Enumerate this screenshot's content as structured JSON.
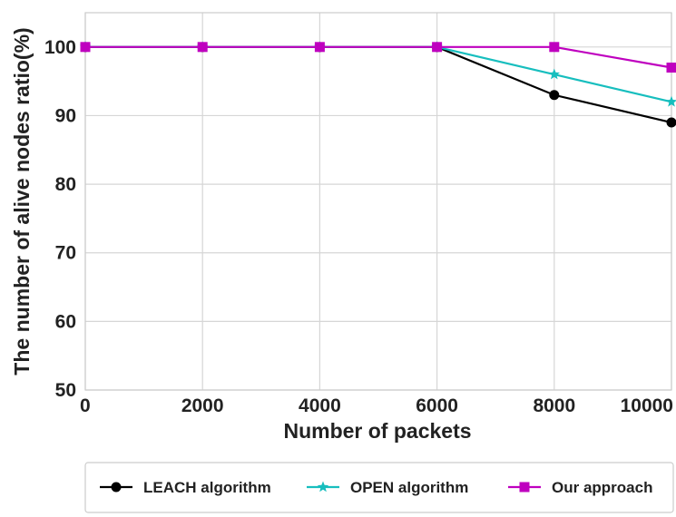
{
  "chart_data": {
    "type": "line",
    "title": "",
    "xlabel": "Number of packets",
    "ylabel": "The number of alive nodes ratio(%)",
    "x": [
      0,
      2000,
      4000,
      6000,
      8000,
      10000
    ],
    "xticks": [
      0,
      2000,
      4000,
      6000,
      8000,
      10000
    ],
    "xtick_labels": [
      "0",
      "2000",
      "4000",
      "6000",
      "8000",
      "10000"
    ],
    "yticks": [
      50,
      60,
      70,
      80,
      90,
      100
    ],
    "ytick_labels": [
      "50",
      "60",
      "70",
      "80",
      "90",
      "100"
    ],
    "xlim": [
      0,
      10000
    ],
    "ylim": [
      50,
      105
    ],
    "grid": true,
    "legend_position": "bottom",
    "series": [
      {
        "name": "LEACH algorithm",
        "marker": "circle",
        "color": "#000000",
        "values": [
          100,
          100,
          100,
          100,
          93,
          89
        ]
      },
      {
        "name": "OPEN algorithm",
        "marker": "star",
        "color": "#17bebe",
        "values": [
          100,
          100,
          100,
          100,
          96,
          92
        ]
      },
      {
        "name": "Our approach",
        "marker": "square",
        "color": "#bf00bf",
        "values": [
          100,
          100,
          100,
          100,
          100,
          97
        ]
      }
    ]
  }
}
